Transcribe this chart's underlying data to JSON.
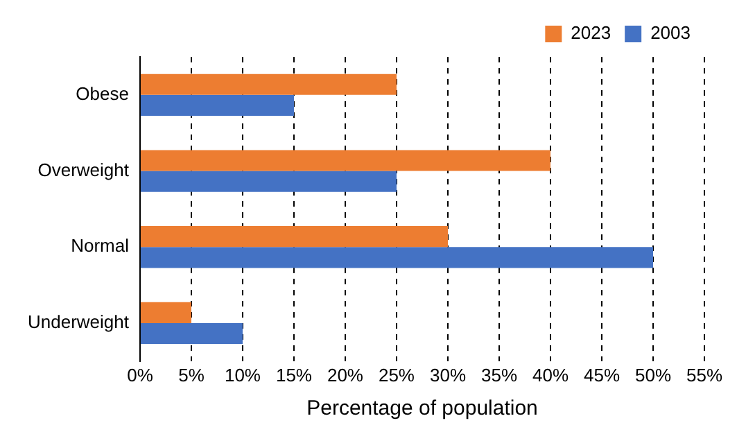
{
  "chart_data": {
    "type": "bar",
    "orientation": "horizontal",
    "xlabel": "Percentage of population",
    "categories": [
      "Obese",
      "Overweight",
      "Normal",
      "Underweight"
    ],
    "series": [
      {
        "name": "2023",
        "color": "#ed7d31",
        "values": [
          25,
          40,
          30,
          5
        ]
      },
      {
        "name": "2003",
        "color": "#4472c4",
        "values": [
          15,
          25,
          50,
          10
        ]
      }
    ],
    "xlim": [
      0,
      55
    ],
    "xticks": [
      {
        "value": 0,
        "label": "0%"
      },
      {
        "value": 5,
        "label": "5%"
      },
      {
        "value": 10,
        "label": "10%"
      },
      {
        "value": 15,
        "label": "15%"
      },
      {
        "value": 20,
        "label": "20%"
      },
      {
        "value": 25,
        "label": "25%"
      },
      {
        "value": 30,
        "label": "30%"
      },
      {
        "value": 35,
        "label": "35%"
      },
      {
        "value": 40,
        "label": "40%"
      },
      {
        "value": 45,
        "label": "45%"
      },
      {
        "value": 50,
        "label": "50%"
      },
      {
        "value": 55,
        "label": "55%"
      }
    ],
    "grid": "x",
    "legend": "top right"
  }
}
